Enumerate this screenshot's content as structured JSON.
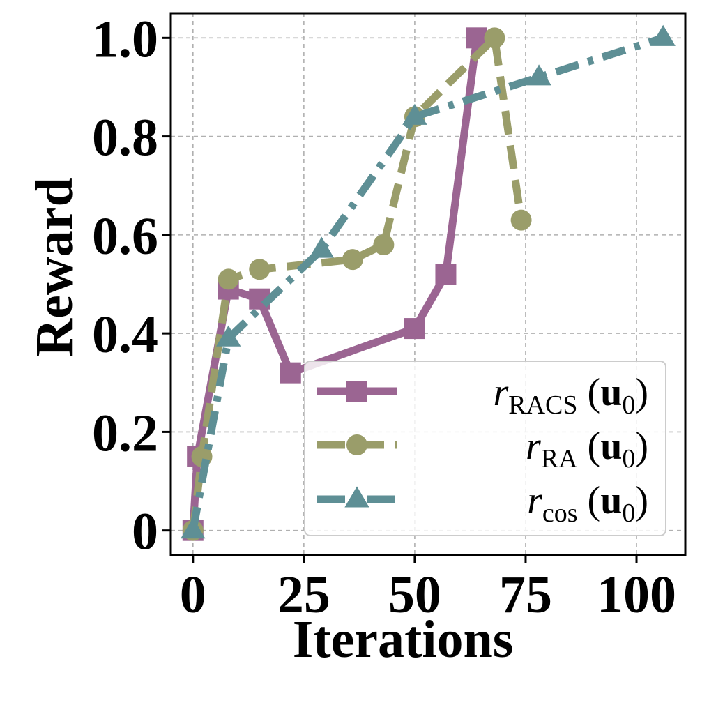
{
  "chart_data": {
    "type": "line",
    "xlabel": "Iterations",
    "ylabel": "Reward",
    "xlim": [
      -5,
      111
    ],
    "ylim": [
      -0.05,
      1.05
    ],
    "xticks": [
      0,
      25,
      50,
      75,
      100
    ],
    "xtick_labels": [
      "0",
      "25",
      "50",
      "75",
      "100"
    ],
    "yticks": [
      0,
      0.2,
      0.4,
      0.6,
      0.8,
      1.0
    ],
    "ytick_labels": [
      "0",
      "0.2",
      "0.4",
      "0.6",
      "0.8",
      "1.0"
    ],
    "grid": true,
    "legend_position": "lower-right",
    "series": [
      {
        "name": "r_RACS(u_0)",
        "legend_main": "r",
        "legend_sub": "RACS",
        "legend_arg": "(u",
        "legend_arg_sub": "0",
        "legend_close": ")",
        "color": "#9b6592",
        "marker": "square",
        "linestyle": "solid",
        "x": [
          0,
          1,
          8,
          15,
          22,
          50,
          57,
          64
        ],
        "y": [
          0.0,
          0.15,
          0.49,
          0.47,
          0.32,
          0.41,
          0.52,
          1.0
        ]
      },
      {
        "name": "r_RA(u_0)",
        "legend_main": "r",
        "legend_sub": "RA",
        "legend_arg": "(u",
        "legend_arg_sub": "0",
        "legend_close": ")",
        "color": "#9a9d6a",
        "marker": "circle",
        "linestyle": "dashed",
        "x": [
          0,
          2,
          8,
          15,
          36,
          43,
          50,
          68,
          74
        ],
        "y": [
          0.0,
          0.15,
          0.51,
          0.53,
          0.55,
          0.58,
          0.84,
          1.0,
          0.63
        ]
      },
      {
        "name": "r_cos(u_0)",
        "legend_main": "r",
        "legend_sub": "cos",
        "legend_arg": "(u",
        "legend_arg_sub": "0",
        "legend_close": ")",
        "color": "#5e8f95",
        "marker": "triangle",
        "linestyle": "dashdot",
        "x": [
          0,
          8,
          29,
          50,
          78,
          106
        ],
        "y": [
          0.0,
          0.39,
          0.57,
          0.84,
          0.92,
          1.0
        ]
      }
    ]
  }
}
